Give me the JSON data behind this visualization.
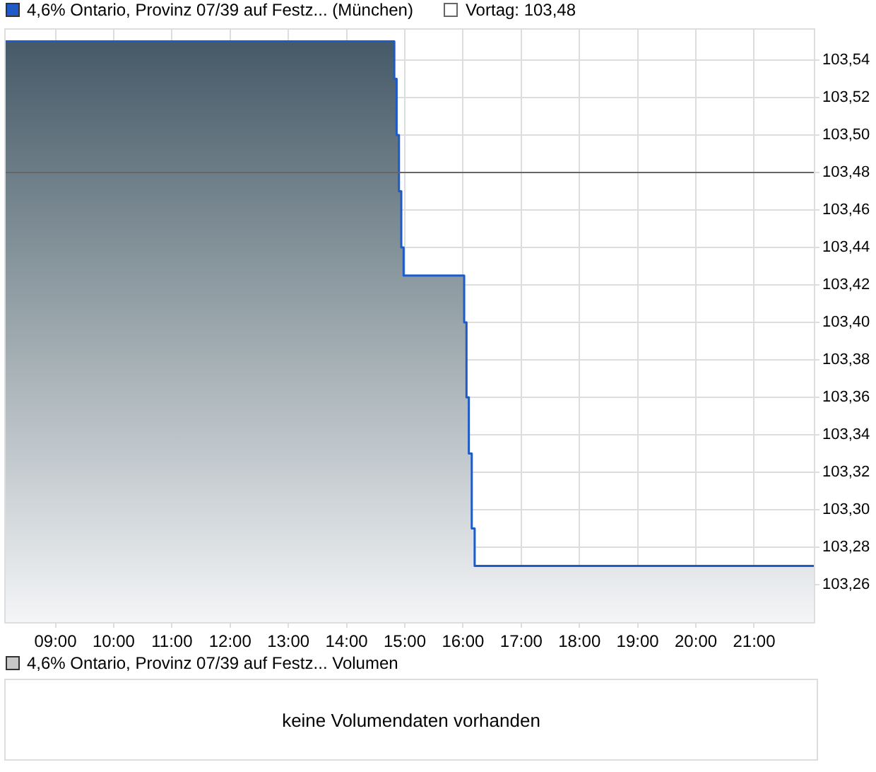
{
  "chart_data": [
    {
      "type": "area",
      "series": [
        {
          "name": "4,6% Ontario, Provinz 07/39 auf Festz... (München)",
          "color": "#1f5bc6",
          "x": [
            8.12,
            14.82,
            14.82,
            14.86,
            14.86,
            14.9,
            14.9,
            14.94,
            14.94,
            14.98,
            14.98,
            16.02,
            16.02,
            16.06,
            16.06,
            16.1,
            16.1,
            16.15,
            16.15,
            16.2,
            16.2,
            22.05
          ],
          "values": [
            103.55,
            103.55,
            103.53,
            103.53,
            103.5,
            103.5,
            103.47,
            103.47,
            103.44,
            103.44,
            103.425,
            103.425,
            103.4,
            103.4,
            103.36,
            103.36,
            103.33,
            103.33,
            103.29,
            103.29,
            103.27,
            103.27
          ]
        }
      ],
      "xlim": [
        8.12,
        22.05
      ],
      "xticks": [
        {
          "value": 9,
          "label": "09:00"
        },
        {
          "value": 10,
          "label": "10:00"
        },
        {
          "value": 11,
          "label": "11:00"
        },
        {
          "value": 12,
          "label": "12:00"
        },
        {
          "value": 13,
          "label": "13:00"
        },
        {
          "value": 14,
          "label": "14:00"
        },
        {
          "value": 15,
          "label": "15:00"
        },
        {
          "value": 16,
          "label": "16:00"
        },
        {
          "value": 17,
          "label": "17:00"
        },
        {
          "value": 18,
          "label": "18:00"
        },
        {
          "value": 19,
          "label": "19:00"
        },
        {
          "value": 20,
          "label": "20:00"
        },
        {
          "value": 21,
          "label": "21:00"
        }
      ],
      "ylim": [
        103.24,
        103.557
      ],
      "yticks": [
        {
          "value": 103.26,
          "label": "103,26"
        },
        {
          "value": 103.28,
          "label": "103,28"
        },
        {
          "value": 103.3,
          "label": "103,30"
        },
        {
          "value": 103.32,
          "label": "103,32"
        },
        {
          "value": 103.34,
          "label": "103,34"
        },
        {
          "value": 103.36,
          "label": "103,36"
        },
        {
          "value": 103.38,
          "label": "103,38"
        },
        {
          "value": 103.4,
          "label": "103,40"
        },
        {
          "value": 103.42,
          "label": "103,42"
        },
        {
          "value": 103.44,
          "label": "103,44"
        },
        {
          "value": 103.46,
          "label": "103,46"
        },
        {
          "value": 103.48,
          "label": "103,48"
        },
        {
          "value": 103.5,
          "label": "103,50"
        },
        {
          "value": 103.52,
          "label": "103,52"
        },
        {
          "value": 103.54,
          "label": "103,54"
        }
      ],
      "ref_lines": [
        {
          "axis": "y",
          "value": 103.48,
          "label": "Vortag: 103,48",
          "color": "#666666"
        }
      ],
      "grid": true,
      "legend": "top left"
    },
    {
      "type": "other",
      "title": "4,6% Ontario, Provinz 07/39 auf Festz... Volumen",
      "annotations": [
        "keine Volumendaten vorhanden"
      ]
    }
  ]
}
